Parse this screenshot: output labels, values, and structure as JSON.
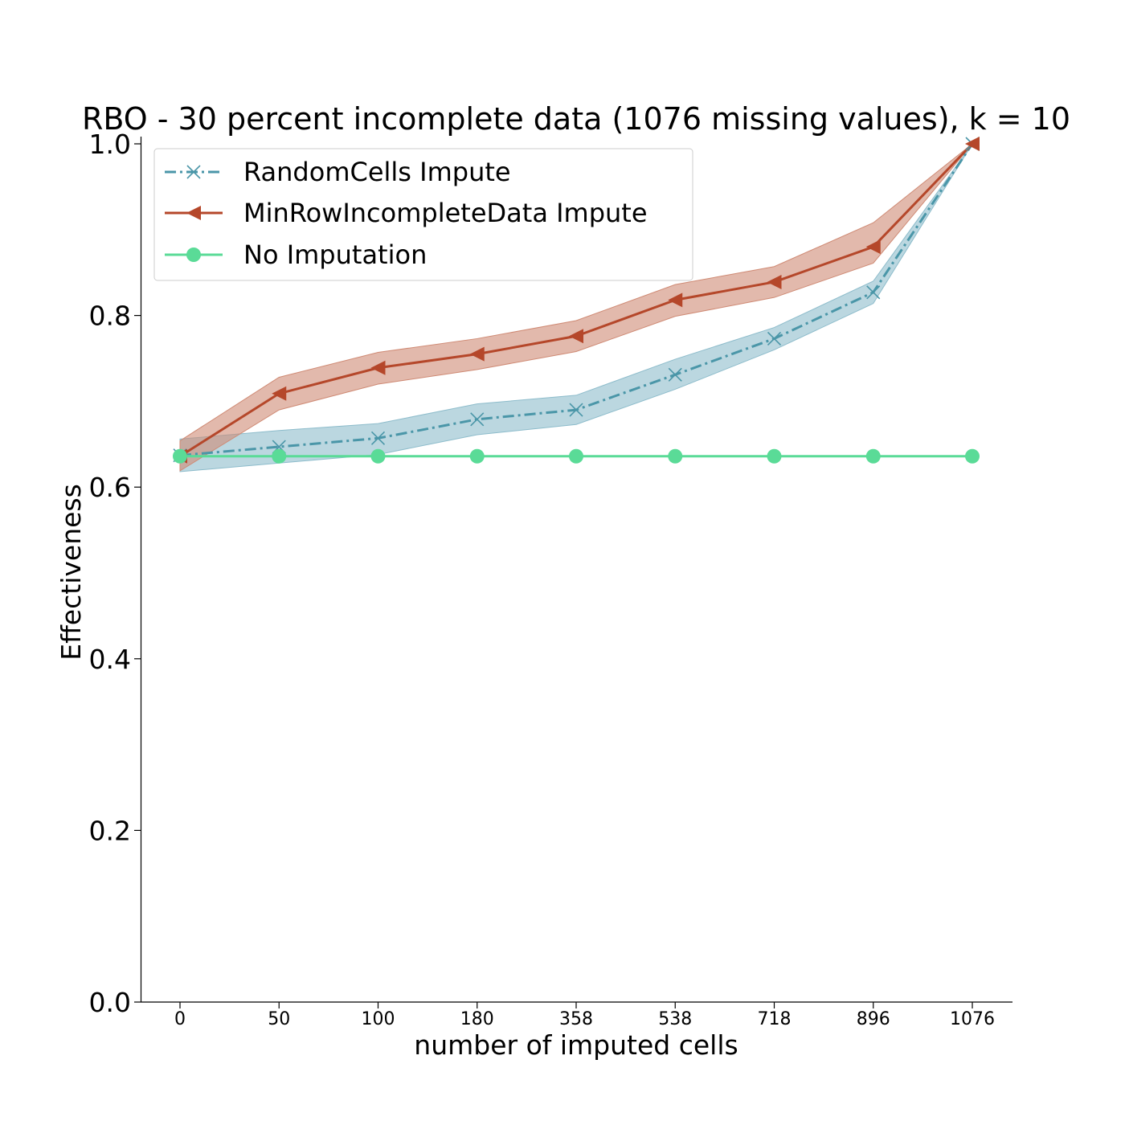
{
  "chart_data": {
    "type": "line",
    "title": "RBO - 30 percent incomplete data (1076 missing values), k = 10",
    "xlabel": "number of imputed cells",
    "ylabel": "Effectiveness",
    "categories": [
      "0",
      "50",
      "100",
      "180",
      "358",
      "538",
      "718",
      "896",
      "1076"
    ],
    "ylim": [
      0,
      1.0
    ],
    "yticks": [
      "0.0",
      "0.2",
      "0.4",
      "0.6",
      "0.8",
      "1.0"
    ],
    "grid": false,
    "legend_position": "upper-left",
    "series": [
      {
        "name": "RandomCells Impute",
        "color": "#4a96a8",
        "band_color": "#8dbccb",
        "linestyle": "dashdot",
        "marker": "x",
        "values": [
          0.637,
          0.647,
          0.657,
          0.679,
          0.69,
          0.731,
          0.773,
          0.827,
          1.0
        ],
        "lower": [
          0.618,
          0.628,
          0.638,
          0.661,
          0.673,
          0.714,
          0.76,
          0.814,
          1.0
        ],
        "upper": [
          0.656,
          0.666,
          0.674,
          0.697,
          0.707,
          0.749,
          0.786,
          0.84,
          1.0
        ]
      },
      {
        "name": "MinRowIncompleteData Impute",
        "color": "#b5472a",
        "band_color": "#cf8a74",
        "linestyle": "solid",
        "marker": "triangle-left",
        "values": [
          0.636,
          0.709,
          0.739,
          0.755,
          0.776,
          0.818,
          0.839,
          0.88,
          1.0
        ],
        "lower": [
          0.619,
          0.69,
          0.72,
          0.737,
          0.758,
          0.799,
          0.821,
          0.861,
          1.0
        ],
        "upper": [
          0.654,
          0.728,
          0.757,
          0.773,
          0.794,
          0.836,
          0.857,
          0.908,
          1.0
        ]
      },
      {
        "name": "No Imputation",
        "color": "#5adb97",
        "linestyle": "solid",
        "marker": "circle",
        "values": [
          0.636,
          0.636,
          0.636,
          0.636,
          0.636,
          0.636,
          0.636,
          0.636,
          0.636
        ]
      }
    ]
  }
}
